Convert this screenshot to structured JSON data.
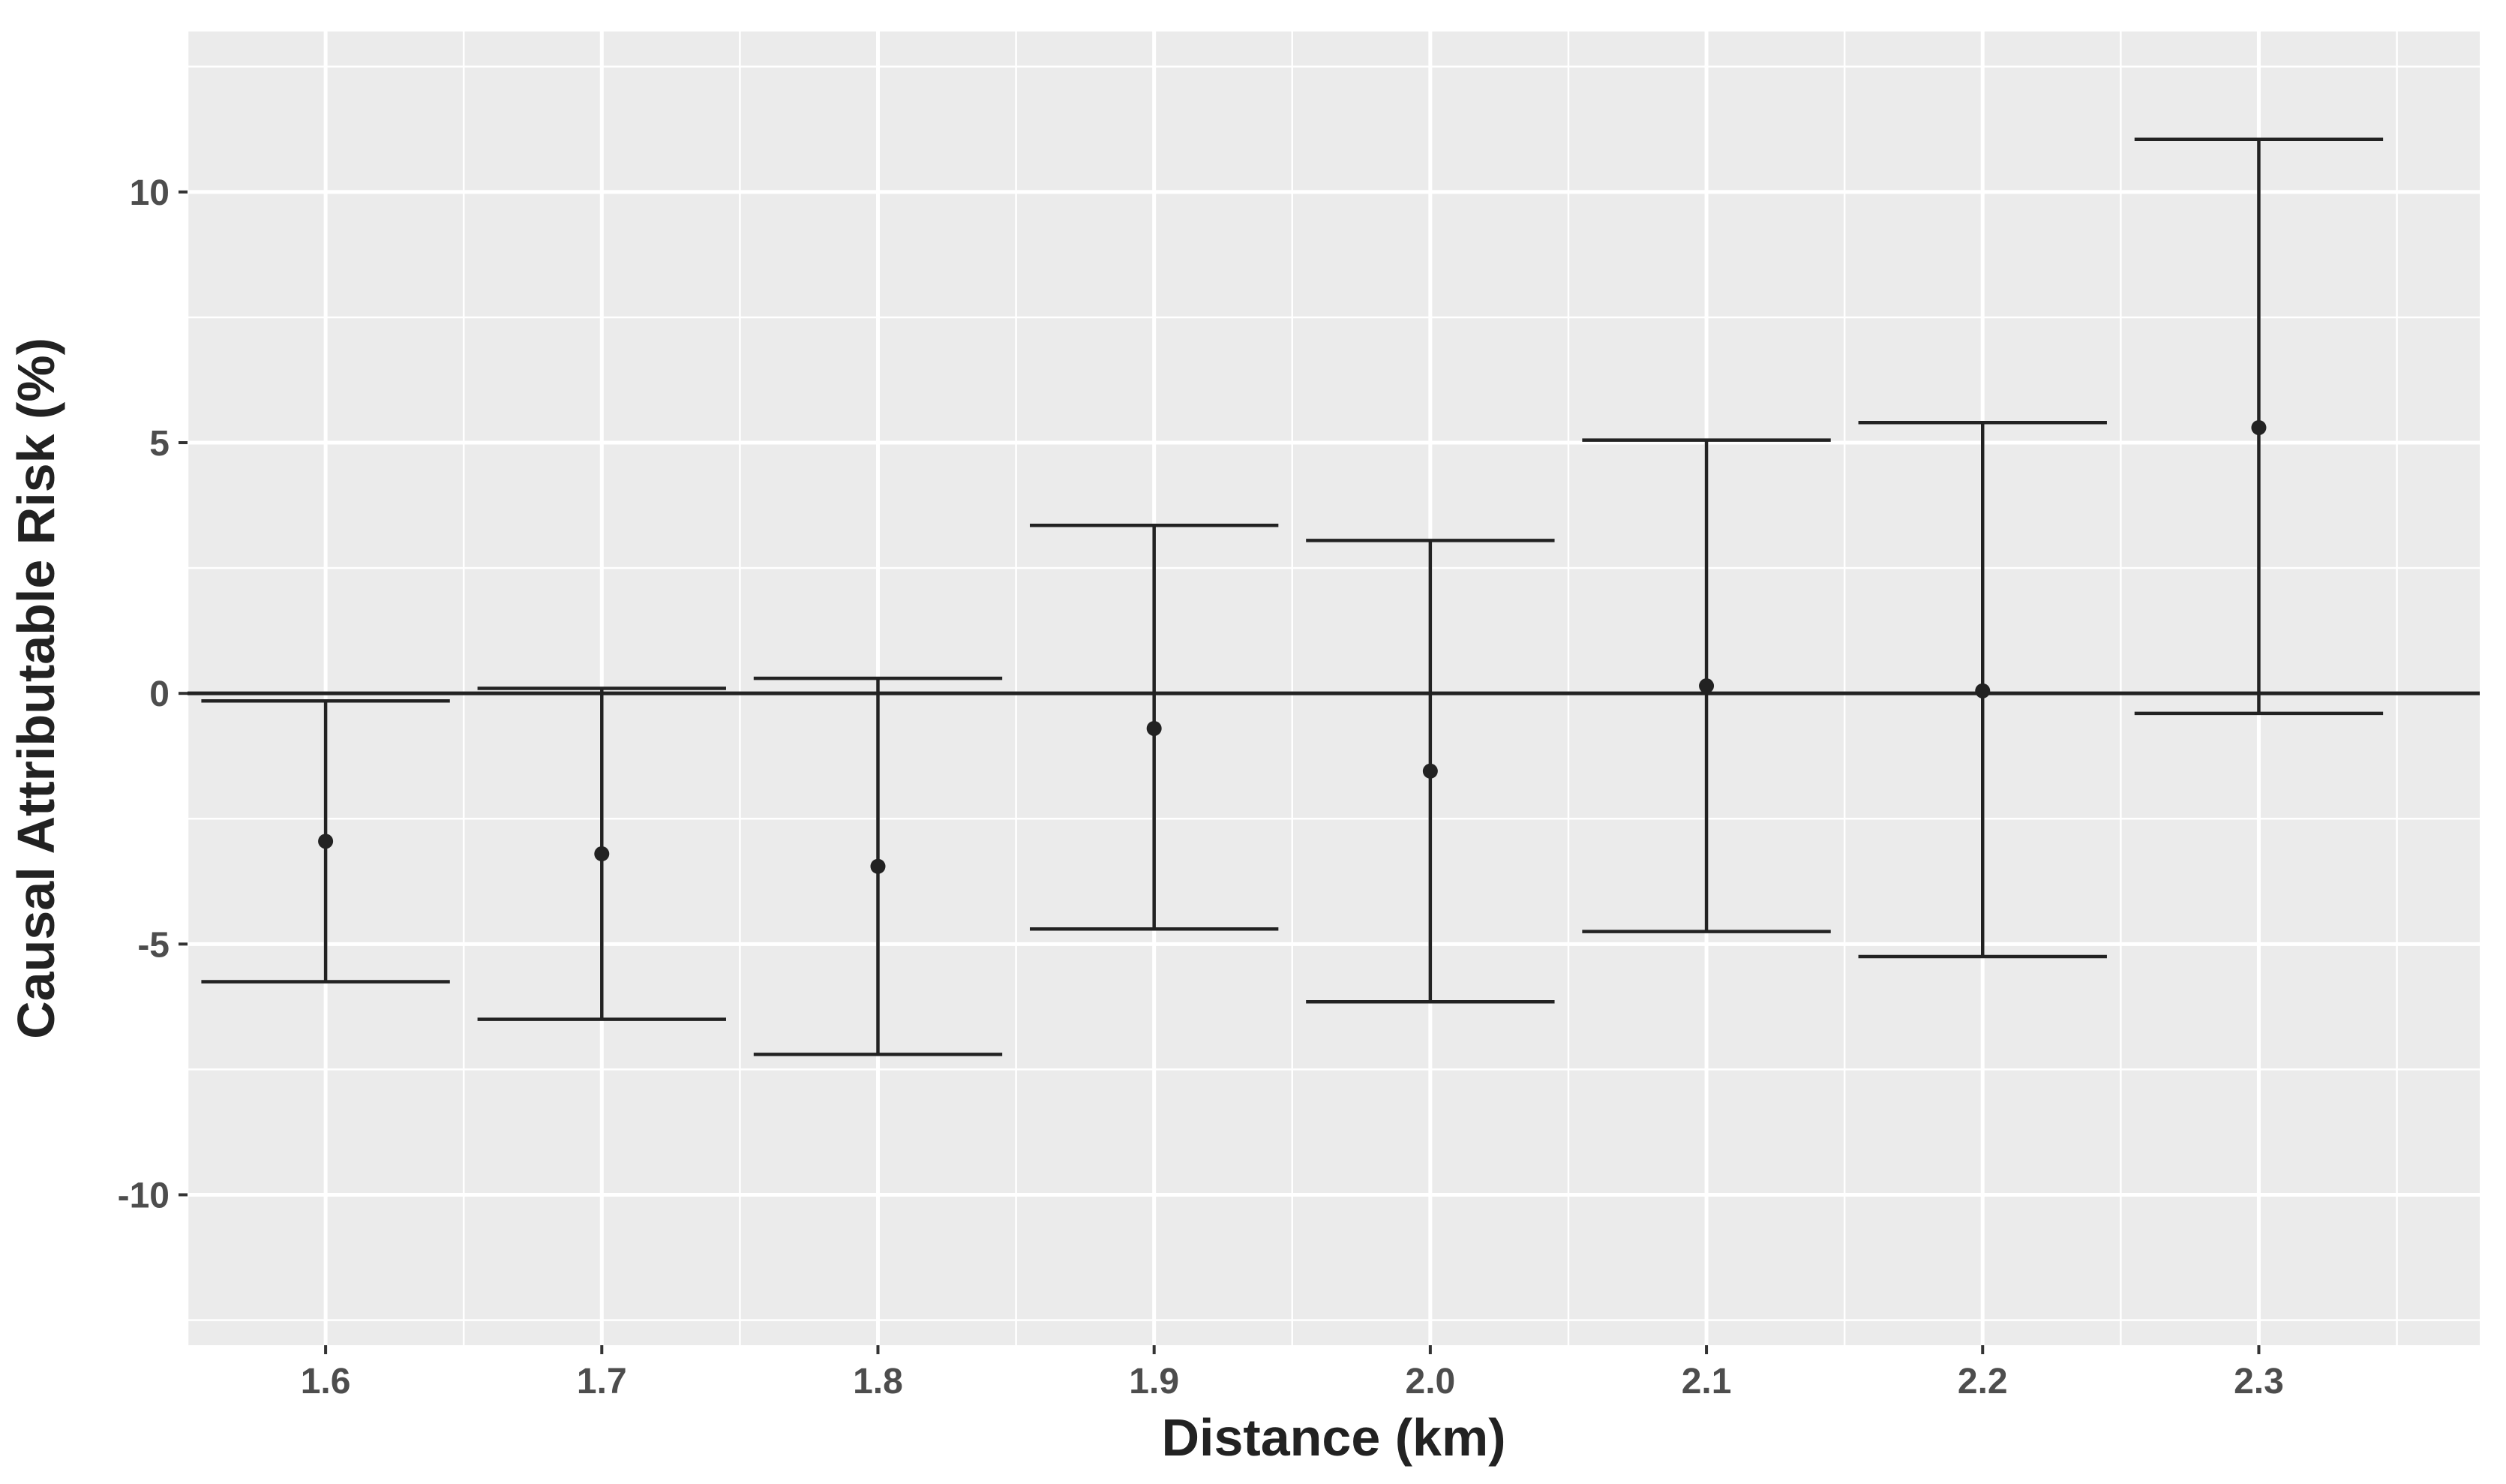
{
  "chart_data": {
    "type": "errorbar",
    "xlabel": "Distance (km)",
    "ylabel": "Causal Attributable Risk (%)",
    "x": [
      1.6,
      1.7,
      1.8,
      1.9,
      2.0,
      2.1,
      2.2,
      2.3
    ],
    "x_tick_labels": [
      "1.6",
      "1.7",
      "1.8",
      "1.9",
      "2.0",
      "2.1",
      "2.2",
      "2.3"
    ],
    "estimate": [
      -2.95,
      -3.2,
      -3.45,
      -0.7,
      -1.55,
      0.15,
      0.05,
      5.3
    ],
    "lower": [
      -5.75,
      -6.5,
      -7.2,
      -4.7,
      -6.15,
      -4.75,
      -5.25,
      -0.4
    ],
    "upper": [
      -0.15,
      0.1,
      0.3,
      3.35,
      3.05,
      5.05,
      5.4,
      11.05
    ],
    "y_ticks": [
      -10,
      -5,
      0,
      5,
      10
    ],
    "y_tick_labels": [
      "-10",
      "-5",
      "0",
      "5",
      "10"
    ],
    "xlim": [
      1.55,
      2.38
    ],
    "ylim": [
      -13,
      13.2
    ],
    "reference_line_y": 0,
    "grid": true,
    "colors": {
      "panel_background": "#ebebeb",
      "grid": "#ffffff",
      "marks": "#222222"
    }
  }
}
